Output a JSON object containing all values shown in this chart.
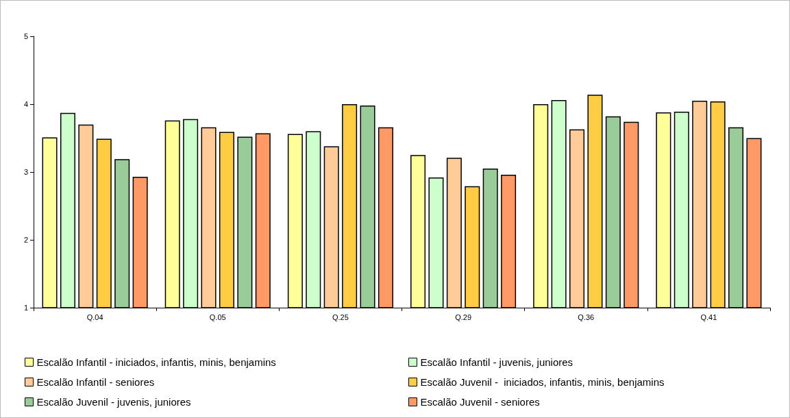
{
  "chart_data": {
    "type": "bar",
    "categories": [
      "Q.04",
      "Q.05",
      "Q.25",
      "Q.29",
      "Q.36",
      "Q.41"
    ],
    "series": [
      {
        "name": "Escalão Infantil - iniciados, infantis, minis, benjamins",
        "color": "#ffff99",
        "values": [
          3.51,
          3.76,
          3.56,
          3.25,
          4.0,
          3.88
        ]
      },
      {
        "name": "Escalão Infantil - juvenis, juniores",
        "color": "#ccffcc",
        "values": [
          3.87,
          3.78,
          3.6,
          2.92,
          4.06,
          3.89
        ]
      },
      {
        "name": "Escalão Infantil - seniores",
        "color": "#ffcc99",
        "values": [
          3.7,
          3.66,
          3.38,
          3.21,
          3.63,
          4.05
        ]
      },
      {
        "name": "Escalão Juvenil -  iniciados, infantis, minis, benjamins",
        "color": "#ffcc44",
        "values": [
          3.49,
          3.59,
          4.0,
          2.79,
          4.14,
          4.04
        ]
      },
      {
        "name": "Escalão Juvenil - juvenis, juniores",
        "color": "#99cc99",
        "values": [
          3.19,
          3.52,
          3.98,
          3.05,
          3.82,
          3.66
        ]
      },
      {
        "name": "Escalão Juvenil - seniores",
        "color": "#ff9966",
        "values": [
          2.93,
          3.57,
          3.66,
          2.96,
          3.74,
          3.5
        ]
      }
    ],
    "ylim": [
      1,
      5
    ],
    "yticks": [
      1,
      2,
      3,
      4,
      5
    ],
    "grid": false,
    "legend": "bottom"
  }
}
